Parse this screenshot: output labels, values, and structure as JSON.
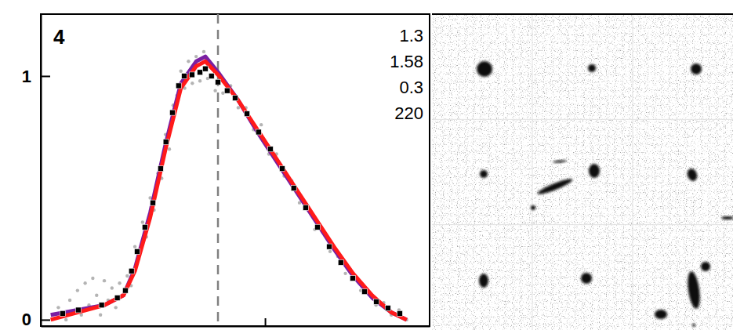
{
  "chart_data": {
    "type": "line",
    "panel_label": "4",
    "annotations": [
      "1.3",
      "1.58",
      "0.3",
      "220"
    ],
    "xlim": [
      -1.6,
      100
    ],
    "ylim": [
      -0.026,
      1.254
    ],
    "xticks": [
      57.0
    ],
    "yticks": [
      0,
      1
    ],
    "tick_labels": "y",
    "grid": false,
    "vline": {
      "value": 44.7,
      "color": "#808080",
      "line_style": "dashed"
    },
    "series": [
      {
        "type": "scatter",
        "color": "#b4b4b4",
        "marker": "circle",
        "x": [
          3,
          5,
          6,
          8,
          9,
          10,
          11,
          12,
          13,
          14,
          15,
          16,
          17,
          18,
          19,
          20,
          21,
          22,
          23,
          24,
          25,
          26,
          27,
          28,
          29,
          30,
          31,
          32,
          33,
          34,
          35,
          36,
          37,
          38,
          39,
          40,
          41,
          42,
          43,
          44,
          45,
          46,
          48,
          50,
          52,
          54,
          56,
          58,
          60,
          62,
          64,
          66,
          68,
          70,
          72,
          74,
          76,
          78,
          80,
          82,
          84,
          86,
          88,
          90,
          92,
          94
        ],
        "values": [
          0.05,
          0.0,
          0.08,
          0.12,
          0.02,
          0.15,
          0.06,
          0.17,
          0.1,
          0.02,
          0.16,
          0.08,
          0.13,
          0.05,
          0.15,
          0.1,
          0.18,
          0.14,
          0.3,
          0.25,
          0.4,
          0.34,
          0.5,
          0.45,
          0.6,
          0.58,
          0.76,
          0.7,
          0.88,
          0.92,
          1.02,
          0.95,
          1.06,
          0.97,
          1.08,
          0.98,
          1.1,
          0.99,
          1.05,
          0.94,
          1.0,
          0.93,
          0.96,
          0.87,
          0.87,
          0.78,
          0.8,
          0.68,
          0.68,
          0.59,
          0.57,
          0.48,
          0.47,
          0.37,
          0.36,
          0.28,
          0.26,
          0.19,
          0.19,
          0.12,
          0.11,
          0.06,
          0.07,
          0.02,
          0.04,
          0.0
        ]
      },
      {
        "type": "line",
        "color": "#7a1fa2",
        "line_style": "solid",
        "x": [
          1,
          8,
          15,
          20,
          23,
          27,
          31,
          35,
          39,
          41.4,
          45,
          50,
          55,
          60,
          65,
          70,
          75,
          80,
          85,
          90,
          94
        ],
        "values": [
          0.02,
          0.04,
          0.06,
          0.1,
          0.21,
          0.44,
          0.72,
          0.97,
          1.06,
          1.08,
          1.01,
          0.9,
          0.77,
          0.65,
          0.53,
          0.41,
          0.29,
          0.18,
          0.09,
          0.03,
          0.0
        ]
      },
      {
        "type": "line",
        "color": "#ff1a1a",
        "line_style": "solid",
        "x": [
          1,
          8,
          15,
          20,
          23,
          27,
          31,
          35,
          39,
          41.4,
          45,
          50,
          55,
          60,
          65,
          70,
          75,
          80,
          85,
          90,
          94
        ],
        "values": [
          0.0,
          0.03,
          0.06,
          0.1,
          0.2,
          0.42,
          0.7,
          0.95,
          1.04,
          1.06,
          1.0,
          0.9,
          0.78,
          0.66,
          0.54,
          0.42,
          0.3,
          0.19,
          0.1,
          0.03,
          0.0
        ]
      },
      {
        "type": "scatter",
        "color": "#000000",
        "marker": "square",
        "x": [
          4.1,
          8.2,
          14.3,
          18.4,
          20.5,
          22.1,
          23.6,
          25.6,
          27.7,
          29.7,
          31.1,
          32.8,
          34.4,
          35.9,
          37.9,
          40.0,
          41.4,
          43.0,
          44.7,
          47.1,
          49.2,
          52.3,
          55.3,
          58.4,
          61.5,
          64.5,
          67.6,
          70.7,
          73.8,
          76.8,
          79.9,
          83.0,
          86.1,
          89.1,
          92.2
        ],
        "values": [
          0.026,
          0.04,
          0.06,
          0.09,
          0.12,
          0.2,
          0.28,
          0.38,
          0.48,
          0.62,
          0.73,
          0.85,
          0.96,
          1.0,
          1.005,
          1.015,
          1.03,
          1.0,
          0.975,
          0.94,
          0.91,
          0.845,
          0.77,
          0.7,
          0.62,
          0.54,
          0.46,
          0.38,
          0.3,
          0.235,
          0.17,
          0.115,
          0.074,
          0.048,
          0.026
        ]
      }
    ],
    "image_grid": {
      "rows": 3,
      "columns": 3
    }
  }
}
